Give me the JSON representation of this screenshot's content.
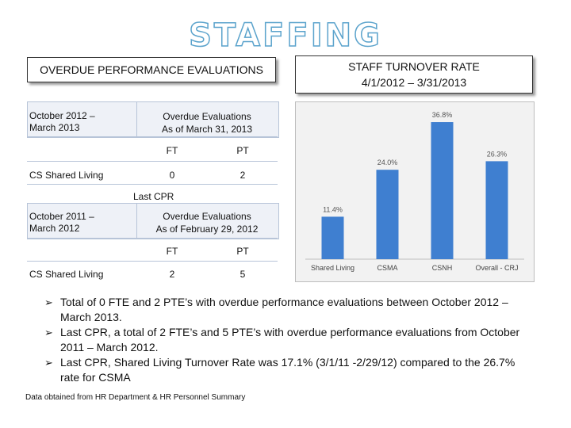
{
  "title": "STAFFING",
  "overdue": {
    "header": "OVERDUE PERFORMANCE EVALUATIONS",
    "current": {
      "period": [
        "October 2012 –",
        "March 2013"
      ],
      "heading": [
        "Overdue Evaluations",
        "As of March 31, 2013"
      ],
      "col1": "FT",
      "col2": "PT",
      "row_label": "CS Shared Living",
      "ft": "0",
      "pt": "2"
    },
    "separator": "Last CPR",
    "prior": {
      "period": [
        "October 2011 –",
        "March 2012"
      ],
      "heading": [
        "Overdue Evaluations",
        "As of February 29, 2012"
      ],
      "col1": "FT",
      "col2": "PT",
      "row_label": "CS Shared Living",
      "ft": "2",
      "pt": "5"
    }
  },
  "turnover": {
    "header_line1": "STAFF TURNOVER RATE",
    "header_line2": "4/1/2012 – 3/31/2013"
  },
  "chart_data": {
    "type": "bar",
    "categories": [
      "Shared Living",
      "CSMA",
      "CSNH",
      "Overall - CRJ"
    ],
    "values": [
      11.4,
      24.0,
      36.8,
      26.3
    ],
    "data_labels": [
      "11.4%",
      "24.0%",
      "36.8%",
      "26.3%"
    ],
    "title": "",
    "xlabel": "",
    "ylabel": "",
    "ylim": [
      0,
      40
    ],
    "grid": false,
    "legend": "none",
    "bar_color": "#3f7fd0"
  },
  "bullets": [
    "Total of 0 FTE and 2 PTE’s with overdue performance evaluations between October 2012 – March 2013.",
    "Last CPR, a total of 2 FTE’s and 5 PTE’s with overdue performance evaluations from October 2011 – March 2012.",
    "Last CPR, Shared Living Turnover Rate was 17.1% (3/1/11 -2/29/12) compared to the 26.7% rate for CSMA"
  ],
  "footnote": "Data obtained from HR Department & HR Personnel Summary",
  "colors": {
    "title_outline": "#5ba3cc",
    "bar": "#3f7fd0",
    "table_header_bg": "#eef1f7"
  }
}
